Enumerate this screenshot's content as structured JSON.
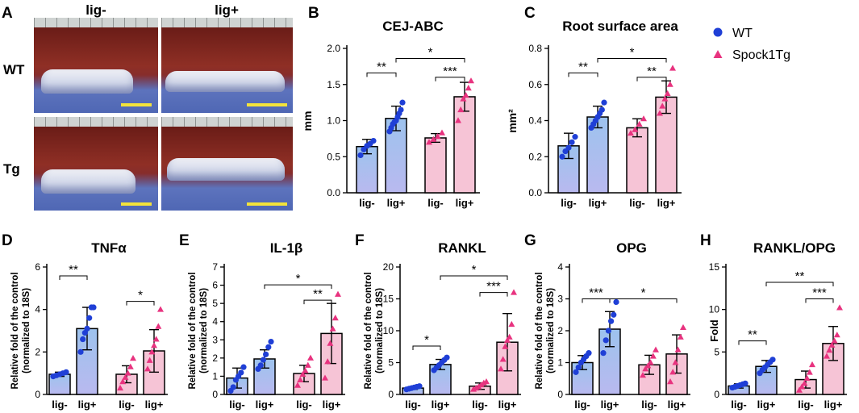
{
  "panel_letters": [
    "A",
    "B",
    "C",
    "D",
    "E",
    "F",
    "G",
    "H"
  ],
  "photos": {
    "col_labels": [
      "lig-",
      "lig+"
    ],
    "row_labels": [
      "WT",
      "Tg"
    ]
  },
  "legend": [
    {
      "name": "WT",
      "color": "#1f3fd6",
      "marker": "circle"
    },
    {
      "name": "Spock1Tg",
      "color": "#e8337f",
      "marker": "triangle"
    }
  ],
  "colors": {
    "wt_bar_top": "#9dc3ee",
    "wt_bar_bottom": "#b9b9ef",
    "tg_bar": "#f6c4d6",
    "wt_point": "#1f3fd6",
    "tg_point": "#e8337f"
  },
  "chart_data": [
    {
      "id": "B",
      "type": "bar",
      "title": "CEJ-ABC",
      "ylabel": "mm",
      "ylim": [
        0,
        2.0
      ],
      "yticks": [
        "0.0",
        "0.5",
        "1.0",
        "1.5",
        "2.0"
      ],
      "ytick_values": [
        0,
        0.5,
        1.0,
        1.5,
        2.0
      ],
      "categories": [
        "lig-",
        "lig+",
        "lig-",
        "lig+"
      ],
      "groups": [
        "WT",
        "WT",
        "Spock1Tg",
        "Spock1Tg"
      ],
      "values": [
        0.64,
        1.03,
        0.76,
        1.33
      ],
      "errors": [
        0.1,
        0.17,
        0.06,
        0.2
      ],
      "points": [
        [
          0.52,
          0.6,
          0.65,
          0.68,
          0.72
        ],
        [
          0.85,
          0.9,
          0.95,
          0.98,
          1.0,
          1.05,
          1.1,
          1.15,
          1.25
        ],
        [
          0.7,
          0.74,
          0.78,
          0.83
        ],
        [
          1.0,
          1.15,
          1.3,
          1.35,
          1.45,
          1.55
        ]
      ],
      "annotations": [
        {
          "from": 0,
          "to": 1,
          "text": "**",
          "level": 0.83
        },
        {
          "from": 2,
          "to": 3,
          "text": "***",
          "level": 0.8
        },
        {
          "from": 1,
          "to": 3,
          "text": "*",
          "level": 0.93
        }
      ]
    },
    {
      "id": "C",
      "type": "bar",
      "title": "Root surface area",
      "ylabel": "mm²",
      "ylim": [
        0,
        0.8
      ],
      "yticks": [
        "0.0",
        "0.2",
        "0.4",
        "0.6",
        "0.8"
      ],
      "ytick_values": [
        0,
        0.2,
        0.4,
        0.6,
        0.8
      ],
      "categories": [
        "lig-",
        "lig+",
        "lig-",
        "lig+"
      ],
      "groups": [
        "WT",
        "WT",
        "Spock1Tg",
        "Spock1Tg"
      ],
      "values": [
        0.26,
        0.42,
        0.36,
        0.53
      ],
      "errors": [
        0.07,
        0.06,
        0.05,
        0.09
      ],
      "points": [
        [
          0.2,
          0.23,
          0.25,
          0.28,
          0.31
        ],
        [
          0.36,
          0.38,
          0.4,
          0.42,
          0.44,
          0.46,
          0.5
        ],
        [
          0.33,
          0.35,
          0.38,
          0.41
        ],
        [
          0.44,
          0.48,
          0.52,
          0.55,
          0.6,
          0.69
        ]
      ],
      "annotations": [
        {
          "from": 0,
          "to": 1,
          "text": "**",
          "level": 0.83
        },
        {
          "from": 2,
          "to": 3,
          "text": "**",
          "level": 0.8
        },
        {
          "from": 1,
          "to": 3,
          "text": "*",
          "level": 0.93
        }
      ]
    },
    {
      "id": "D",
      "type": "bar",
      "title": "TNFα",
      "ylabel": "Relative fold of the control (normalized to 18S)",
      "ylim": [
        0,
        6
      ],
      "yticks": [
        "0",
        "2",
        "4",
        "6"
      ],
      "ytick_values": [
        0,
        2,
        4,
        6
      ],
      "categories": [
        "lig-",
        "lig+",
        "lig-",
        "lig+"
      ],
      "groups": [
        "WT",
        "WT",
        "Spock1Tg",
        "Spock1Tg"
      ],
      "values": [
        0.95,
        3.1,
        0.95,
        2.05
      ],
      "errors": [
        0.1,
        1.0,
        0.4,
        1.0
      ],
      "points": [
        [
          0.85,
          0.9,
          0.95,
          1.0,
          1.05
        ],
        [
          2.0,
          2.6,
          2.9,
          3.1,
          3.6,
          4.1,
          4.1
        ],
        [
          0.3,
          0.6,
          0.8,
          1.0,
          1.3,
          1.7
        ],
        [
          1.2,
          1.6,
          2.0,
          2.3,
          2.6,
          3.2,
          4.0
        ]
      ],
      "annotations": [
        {
          "from": 0,
          "to": 1,
          "text": "**",
          "level": 0.93
        },
        {
          "from": 2,
          "to": 3,
          "text": "*",
          "level": 0.73
        }
      ]
    },
    {
      "id": "E",
      "type": "bar",
      "title": "IL-1β",
      "ylabel": "Relative fold of the control (normalized to 18S)",
      "ylim": [
        0,
        7
      ],
      "yticks": [
        "0",
        "1",
        "2",
        "3",
        "4",
        "5",
        "6",
        "7"
      ],
      "ytick_values": [
        0,
        1,
        2,
        3,
        4,
        5,
        6,
        7
      ],
      "categories": [
        "lig-",
        "lig+",
        "lig-",
        "lig+"
      ],
      "groups": [
        "WT",
        "WT",
        "Spock1Tg",
        "Spock1Tg"
      ],
      "values": [
        0.9,
        1.95,
        1.15,
        3.35
      ],
      "errors": [
        0.55,
        0.5,
        0.45,
        1.65
      ],
      "points": [
        [
          0.2,
          0.4,
          0.8,
          1.0,
          1.2,
          1.5
        ],
        [
          1.4,
          1.6,
          1.9,
          2.2,
          2.6,
          2.9
        ],
        [
          0.5,
          0.8,
          1.1,
          1.3,
          1.6,
          2.0
        ],
        [
          0.9,
          1.8,
          2.8,
          3.6,
          4.2,
          5.5
        ]
      ],
      "annotations": [
        {
          "from": 2,
          "to": 3,
          "text": "**",
          "level": 0.74
        },
        {
          "from": 1,
          "to": 3,
          "text": "*",
          "level": 0.86
        }
      ]
    },
    {
      "id": "F",
      "type": "bar",
      "title": "RANKL",
      "ylabel": "Relative fold of the control (normalized to 18S)",
      "ylim": [
        0,
        20
      ],
      "yticks": [
        "0",
        "5",
        "10",
        "15",
        "20"
      ],
      "ytick_values": [
        0,
        5,
        10,
        15,
        20
      ],
      "categories": [
        "lig-",
        "lig+",
        "lig-",
        "lig+"
      ],
      "groups": [
        "WT",
        "WT",
        "Spock1Tg",
        "Spock1Tg"
      ],
      "values": [
        1.0,
        4.7,
        1.3,
        8.2
      ],
      "errors": [
        0.2,
        0.8,
        0.5,
        4.5
      ],
      "points": [
        [
          0.8,
          0.9,
          1.0,
          1.1,
          1.2,
          1.3
        ],
        [
          3.8,
          4.2,
          4.6,
          5.0,
          5.4,
          5.8
        ],
        [
          0.8,
          1.0,
          1.2,
          1.5,
          1.8,
          2.0
        ],
        [
          4.0,
          5.5,
          7.5,
          8.5,
          9.0,
          11.0,
          16.0
        ]
      ],
      "annotations": [
        {
          "from": 0,
          "to": 1,
          "text": "*",
          "level": 0.38
        },
        {
          "from": 2,
          "to": 3,
          "text": "***",
          "level": 0.8
        },
        {
          "from": 1,
          "to": 3,
          "text": "*",
          "level": 0.93
        }
      ]
    },
    {
      "id": "G",
      "type": "bar",
      "title": "OPG",
      "ylabel": "Relative fold of the control (normalized to 18S)",
      "ylim": [
        0,
        4
      ],
      "yticks": [
        "0",
        "1",
        "2",
        "3",
        "4"
      ],
      "ytick_values": [
        0,
        1,
        2,
        3,
        4
      ],
      "categories": [
        "lig-",
        "lig+",
        "lig-",
        "lig+"
      ],
      "groups": [
        "WT",
        "WT",
        "Spock1Tg",
        "Spock1Tg"
      ],
      "values": [
        1.0,
        2.05,
        0.93,
        1.27
      ],
      "errors": [
        0.22,
        0.55,
        0.3,
        0.6
      ],
      "points": [
        [
          0.7,
          0.85,
          1.0,
          1.1,
          1.2,
          1.3
        ],
        [
          1.3,
          1.7,
          2.0,
          2.3,
          2.5,
          2.9
        ],
        [
          0.6,
          0.8,
          0.9,
          1.0,
          1.2,
          1.4
        ],
        [
          0.4,
          0.7,
          1.0,
          1.4,
          1.8,
          2.1
        ]
      ],
      "annotations": [
        {
          "from": 0,
          "to": 1,
          "text": "***",
          "level": 0.75
        },
        {
          "from": 1,
          "to": 3,
          "text": "*",
          "level": 0.75
        }
      ]
    },
    {
      "id": "H",
      "type": "bar",
      "title": "RANKL/OPG",
      "ylabel": "Fold",
      "ylim": [
        0,
        15
      ],
      "yticks": [
        "0",
        "5",
        "10",
        "15"
      ],
      "ytick_values": [
        0,
        5,
        10,
        15
      ],
      "categories": [
        "lig-",
        "lig+",
        "lig-",
        "lig+"
      ],
      "groups": [
        "WT",
        "WT",
        "Spock1Tg",
        "Spock1Tg"
      ],
      "values": [
        1.0,
        3.3,
        1.75,
        6.0
      ],
      "errors": [
        0.25,
        0.7,
        1.0,
        2.0
      ],
      "points": [
        [
          0.8,
          0.9,
          1.0,
          1.1,
          1.2,
          1.3
        ],
        [
          2.5,
          2.9,
          3.2,
          3.5,
          3.8,
          4.1
        ],
        [
          0.5,
          0.9,
          1.3,
          1.9,
          2.6,
          3.5
        ],
        [
          4.5,
          5.2,
          5.8,
          6.3,
          7.0,
          10.2
        ]
      ],
      "annotations": [
        {
          "from": 0,
          "to": 1,
          "text": "**",
          "level": 0.42
        },
        {
          "from": 2,
          "to": 3,
          "text": "***",
          "level": 0.75
        },
        {
          "from": 1,
          "to": 3,
          "text": "**",
          "level": 0.88
        }
      ]
    }
  ]
}
